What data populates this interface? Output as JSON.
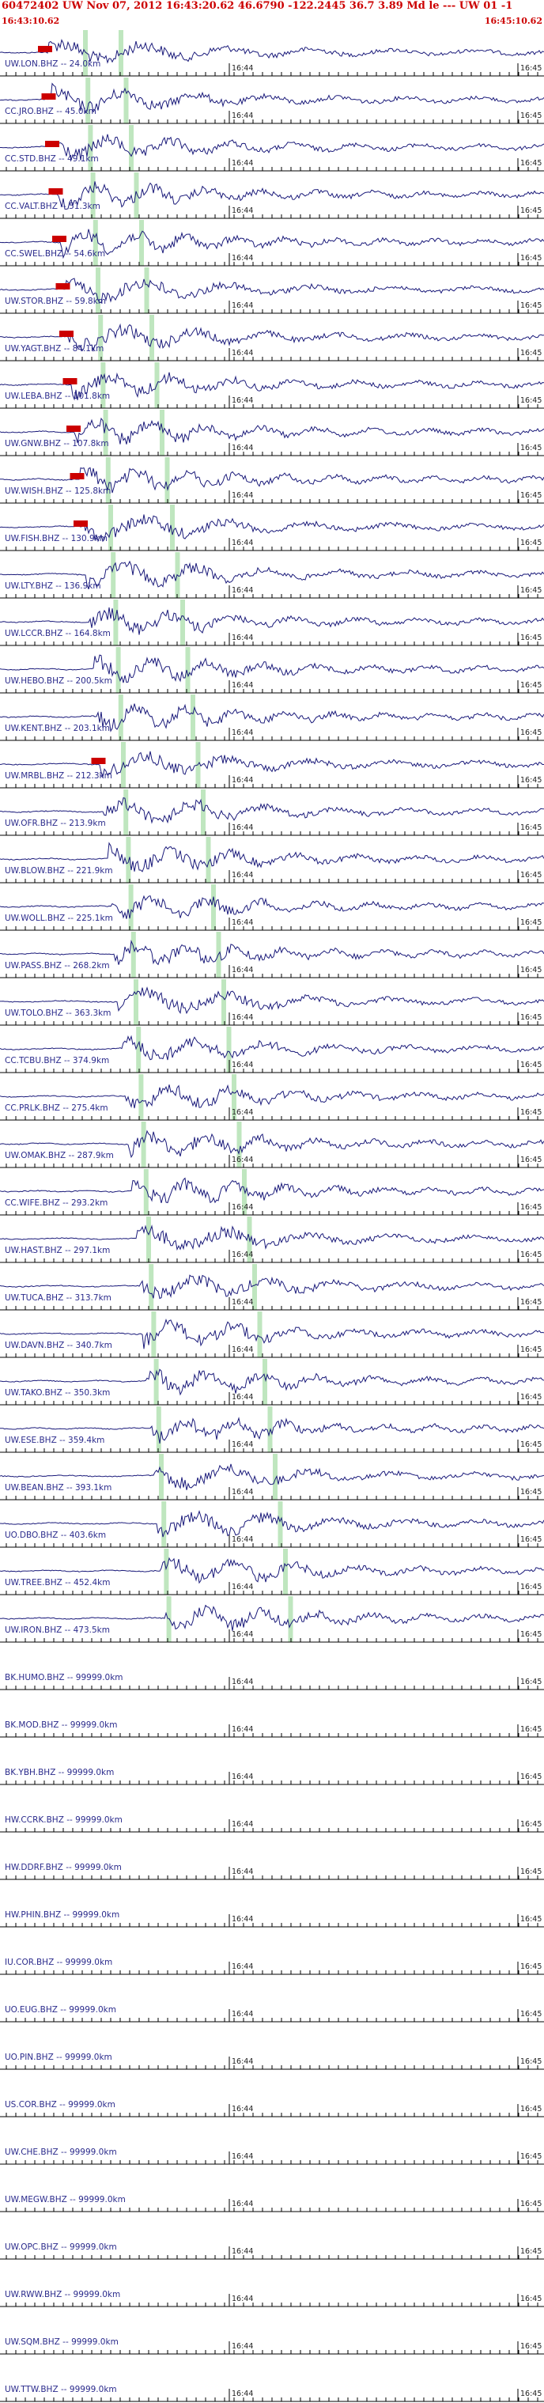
{
  "header": {
    "title": "60472402 UW Nov 07, 2012 16:43:20.62   46.6790 -122.2445 36.7 3.89 Md le --- UW 01  -1",
    "start_time": "16:43:10.62",
    "end_time": "16:45:10.62"
  },
  "colors": {
    "trace": "#1a1a7a",
    "pick": "#cc0000",
    "phase_band": "#bfe6bf",
    "header": "#cc0000"
  },
  "chart_data": {
    "type": "seismogram-record-section",
    "start_time": "16:43:10.62",
    "end_time": "16:45:10.62",
    "time_marks": [
      "16:44",
      "16:45"
    ],
    "tick_interval_s": 2,
    "stations": [
      {
        "label": "UW.LON.BHZ -- 24.0km",
        "has_data": true
      },
      {
        "label": "CC.JRO.BHZ -- 45.0km",
        "has_data": true
      },
      {
        "label": "CC.STD.BHZ -- 49.1km",
        "has_data": true
      },
      {
        "label": "CC.VALT.BHZ -- 51.3km",
        "has_data": true
      },
      {
        "label": "CC.SWEL.BHZ -- 54.6km",
        "has_data": true
      },
      {
        "label": "UW.STOR.BHZ -- 59.8km",
        "has_data": true
      },
      {
        "label": "UW.YAGT.BHZ -- 84.1km",
        "has_data": true
      },
      {
        "label": "UW.LEBA.BHZ -- 101.8km",
        "has_data": true
      },
      {
        "label": "UW.GNW.BHZ -- 107.8km",
        "has_data": true
      },
      {
        "label": "UW.WISH.BHZ -- 125.8km",
        "has_data": true
      },
      {
        "label": "UW.FISH.BHZ -- 130.9km",
        "has_data": true
      },
      {
        "label": "UW.LTY.BHZ -- 136.9km",
        "has_data": true
      },
      {
        "label": "UW.LCCR.BHZ -- 164.8km",
        "has_data": true
      },
      {
        "label": "UW.HEBO.BHZ -- 200.5km",
        "has_data": true
      },
      {
        "label": "UW.KENT.BHZ -- 203.1km",
        "has_data": true
      },
      {
        "label": "UW.MRBL.BHZ -- 212.3km",
        "has_data": true
      },
      {
        "label": "UW.OFR.BHZ -- 213.9km",
        "has_data": true
      },
      {
        "label": "UW.BLOW.BHZ -- 221.9km",
        "has_data": true
      },
      {
        "label": "UW.WOLL.BHZ -- 225.1km",
        "has_data": true
      },
      {
        "label": "UW.PASS.BHZ -- 268.2km",
        "has_data": true
      },
      {
        "label": "UW.TOLO.BHZ -- 363.3km",
        "has_data": true
      },
      {
        "label": "CC.TCBU.BHZ -- 374.9km",
        "has_data": true
      },
      {
        "label": "CC.PRLK.BHZ -- 275.4km",
        "has_data": true
      },
      {
        "label": "UW.OMAK.BHZ -- 287.9km",
        "has_data": true
      },
      {
        "label": "CC.WIFE.BHZ -- 293.2km",
        "has_data": true
      },
      {
        "label": "UW.HAST.BHZ -- 297.1km",
        "has_data": true
      },
      {
        "label": "UW.TUCA.BHZ -- 313.7km",
        "has_data": true
      },
      {
        "label": "UW.DAVN.BHZ -- 340.7km",
        "has_data": true
      },
      {
        "label": "UW.TAKO.BHZ -- 350.3km",
        "has_data": true
      },
      {
        "label": "UW.ESE.BHZ -- 359.4km",
        "has_data": true
      },
      {
        "label": "UW.BEAN.BHZ -- 393.1km",
        "has_data": true
      },
      {
        "label": "UO.DBO.BHZ -- 403.6km",
        "has_data": true
      },
      {
        "label": "UW.TREE.BHZ -- 452.4km",
        "has_data": true
      },
      {
        "label": "UW.IRON.BHZ -- 473.5km",
        "has_data": true
      },
      {
        "label": "BK.HUMO.BHZ -- 99999.0km",
        "has_data": false
      },
      {
        "label": "BK.MOD.BHZ -- 99999.0km",
        "has_data": false
      },
      {
        "label": "BK.YBH.BHZ -- 99999.0km",
        "has_data": false
      },
      {
        "label": "HW.CCRK.BHZ -- 99999.0km",
        "has_data": false
      },
      {
        "label": "HW.DDRF.BHZ -- 99999.0km",
        "has_data": false
      },
      {
        "label": "HW.PHIN.BHZ -- 99999.0km",
        "has_data": false
      },
      {
        "label": "IU.COR.BHZ -- 99999.0km",
        "has_data": false
      },
      {
        "label": "UO.EUG.BHZ -- 99999.0km",
        "has_data": false
      },
      {
        "label": "UO.PIN.BHZ -- 99999.0km",
        "has_data": false
      },
      {
        "label": "US.COR.BHZ -- 99999.0km",
        "has_data": false
      },
      {
        "label": "UW.CHE.BHZ -- 99999.0km",
        "has_data": false
      },
      {
        "label": "UW.MEGW.BHZ -- 99999.0km",
        "has_data": false
      },
      {
        "label": "UW.OPC.BHZ -- 99999.0km",
        "has_data": false
      },
      {
        "label": "UW.RWW.BHZ -- 99999.0km",
        "has_data": false
      },
      {
        "label": "UW.SQM.BHZ -- 99999.0km",
        "has_data": false
      },
      {
        "label": "UW.TTW.BHZ -- 99999.0km",
        "has_data": false
      }
    ]
  }
}
